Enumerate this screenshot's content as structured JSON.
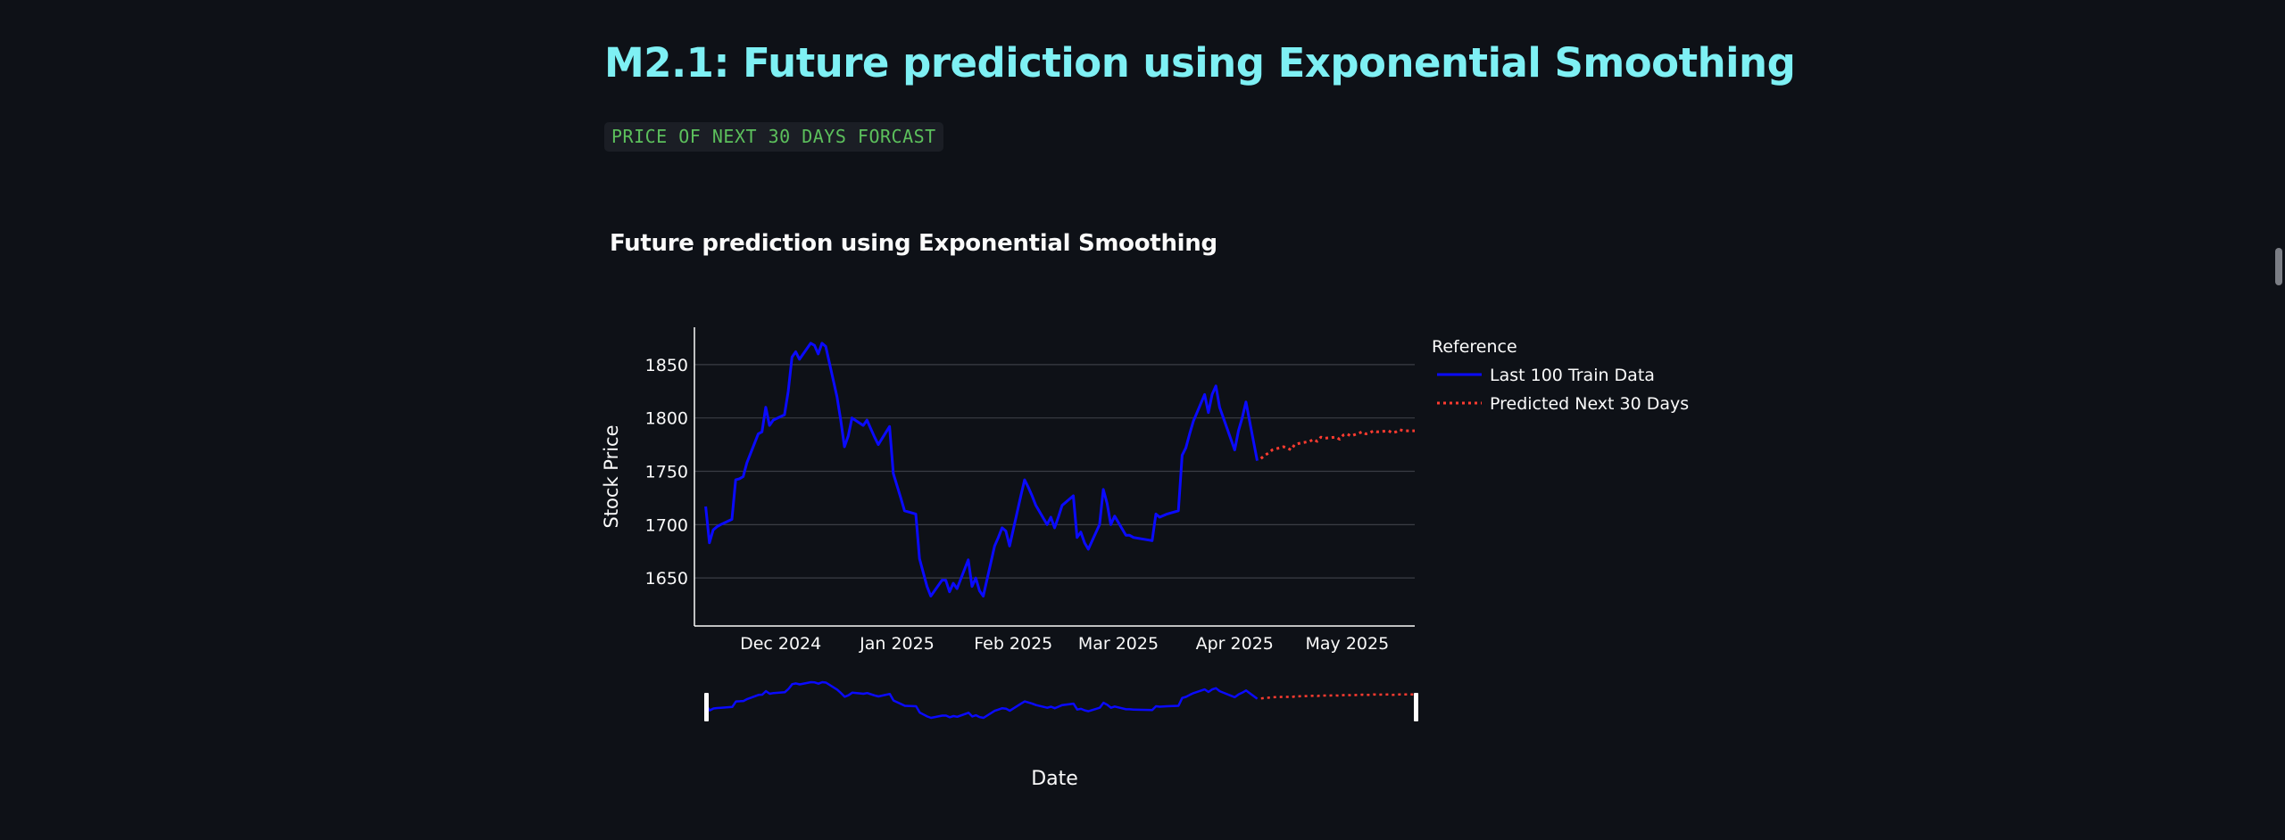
{
  "page": {
    "title": "M2.1: Future prediction using Exponential Smoothing",
    "code_label": "PRICE OF NEXT 30 DAYS FORCAST"
  },
  "colors": {
    "background": "#0e1117",
    "title": "#7ef0f4",
    "code_text": "#5cc05c",
    "code_bg": "#1b1e25",
    "train_line": "#0a0aff",
    "predicted_line": "#ff3b30",
    "axis_text": "#fafafa",
    "grid": "#3a3d45",
    "scrollbar": "#7b7e85"
  },
  "chart_data": {
    "type": "line",
    "title": "Future prediction using Exponential Smoothing",
    "xlabel": "Date",
    "ylabel": "Stock Price",
    "y_ticks": [
      1650,
      1700,
      1750,
      1800,
      1850
    ],
    "ylim": [
      1605,
      1885
    ],
    "x_ticks": [
      {
        "date": "2024-12-01",
        "label": "Dec 2024"
      },
      {
        "date": "2025-01-01",
        "label": "Jan 2025"
      },
      {
        "date": "2025-02-01",
        "label": "Feb 2025"
      },
      {
        "date": "2025-03-01",
        "label": "Mar 2025"
      },
      {
        "date": "2025-04-01",
        "label": "Apr 2025"
      },
      {
        "date": "2025-05-01",
        "label": "May 2025"
      }
    ],
    "xlim": [
      "2024-11-08",
      "2025-05-19"
    ],
    "grid": true,
    "legend": {
      "title": "Reference",
      "position": "right"
    },
    "rangeslider": true,
    "series": [
      {
        "name": "Last 100 Train Data",
        "style": "solid",
        "points": [
          [
            "2024-11-11",
            1717
          ],
          [
            "2024-11-12",
            1683
          ],
          [
            "2024-11-13",
            1695
          ],
          [
            "2024-11-14",
            1698
          ],
          [
            "2024-11-15",
            1700
          ],
          [
            "2024-11-18",
            1705
          ],
          [
            "2024-11-19",
            1742
          ],
          [
            "2024-11-20",
            1743
          ],
          [
            "2024-11-21",
            1745
          ],
          [
            "2024-11-22",
            1758
          ],
          [
            "2024-11-25",
            1785
          ],
          [
            "2024-11-26",
            1787
          ],
          [
            "2024-11-27",
            1810
          ],
          [
            "2024-11-28",
            1793
          ],
          [
            "2024-11-29",
            1798
          ],
          [
            "2024-12-02",
            1803
          ],
          [
            "2024-12-03",
            1825
          ],
          [
            "2024-12-04",
            1857
          ],
          [
            "2024-12-05",
            1862
          ],
          [
            "2024-12-06",
            1855
          ],
          [
            "2024-12-09",
            1870
          ],
          [
            "2024-12-10",
            1868
          ],
          [
            "2024-12-11",
            1860
          ],
          [
            "2024-12-12",
            1870
          ],
          [
            "2024-12-13",
            1867
          ],
          [
            "2024-12-16",
            1820
          ],
          [
            "2024-12-17",
            1798
          ],
          [
            "2024-12-18",
            1773
          ],
          [
            "2024-12-19",
            1783
          ],
          [
            "2024-12-20",
            1800
          ],
          [
            "2024-12-23",
            1793
          ],
          [
            "2024-12-24",
            1798
          ],
          [
            "2024-12-26",
            1782
          ],
          [
            "2024-12-27",
            1775
          ],
          [
            "2024-12-30",
            1792
          ],
          [
            "2024-12-31",
            1748
          ],
          [
            "2025-01-02",
            1725
          ],
          [
            "2025-01-03",
            1713
          ],
          [
            "2025-01-06",
            1710
          ],
          [
            "2025-01-07",
            1668
          ],
          [
            "2025-01-08",
            1655
          ],
          [
            "2025-01-09",
            1642
          ],
          [
            "2025-01-10",
            1633
          ],
          [
            "2025-01-13",
            1648
          ],
          [
            "2025-01-14",
            1648
          ],
          [
            "2025-01-15",
            1637
          ],
          [
            "2025-01-16",
            1645
          ],
          [
            "2025-01-17",
            1640
          ],
          [
            "2025-01-20",
            1667
          ],
          [
            "2025-01-21",
            1642
          ],
          [
            "2025-01-22",
            1650
          ],
          [
            "2025-01-23",
            1638
          ],
          [
            "2025-01-24",
            1633
          ],
          [
            "2025-01-27",
            1680
          ],
          [
            "2025-01-28",
            1688
          ],
          [
            "2025-01-29",
            1697
          ],
          [
            "2025-01-30",
            1694
          ],
          [
            "2025-01-31",
            1680
          ],
          [
            "2025-02-03",
            1727
          ],
          [
            "2025-02-04",
            1742
          ],
          [
            "2025-02-05",
            1735
          ],
          [
            "2025-02-06",
            1727
          ],
          [
            "2025-02-07",
            1718
          ],
          [
            "2025-02-10",
            1700
          ],
          [
            "2025-02-11",
            1707
          ],
          [
            "2025-02-12",
            1697
          ],
          [
            "2025-02-13",
            1707
          ],
          [
            "2025-02-14",
            1718
          ],
          [
            "2025-02-17",
            1727
          ],
          [
            "2025-02-18",
            1688
          ],
          [
            "2025-02-19",
            1693
          ],
          [
            "2025-02-20",
            1683
          ],
          [
            "2025-02-21",
            1677
          ],
          [
            "2025-02-24",
            1700
          ],
          [
            "2025-02-25",
            1733
          ],
          [
            "2025-02-26",
            1720
          ],
          [
            "2025-02-27",
            1700
          ],
          [
            "2025-02-28",
            1708
          ],
          [
            "2025-03-03",
            1690
          ],
          [
            "2025-03-04",
            1690
          ],
          [
            "2025-03-05",
            1688
          ],
          [
            "2025-03-10",
            1685
          ],
          [
            "2025-03-11",
            1710
          ],
          [
            "2025-03-12",
            1707
          ],
          [
            "2025-03-14",
            1710
          ],
          [
            "2025-03-17",
            1713
          ],
          [
            "2025-03-18",
            1765
          ],
          [
            "2025-03-19",
            1772
          ],
          [
            "2025-03-20",
            1785
          ],
          [
            "2025-03-21",
            1797
          ],
          [
            "2025-03-24",
            1822
          ],
          [
            "2025-03-25",
            1805
          ],
          [
            "2025-03-26",
            1822
          ],
          [
            "2025-03-27",
            1830
          ],
          [
            "2025-03-28",
            1810
          ],
          [
            "2025-04-01",
            1770
          ],
          [
            "2025-04-02",
            1788
          ],
          [
            "2025-04-03",
            1800
          ],
          [
            "2025-04-04",
            1815
          ],
          [
            "2025-04-07",
            1760
          ]
        ]
      },
      {
        "name": "Predicted Next 30 Days",
        "style": "dotted",
        "points": [
          [
            "2025-04-08",
            1762
          ],
          [
            "2025-04-09",
            1765
          ],
          [
            "2025-04-10",
            1767
          ],
          [
            "2025-04-11",
            1770
          ],
          [
            "2025-04-14",
            1773
          ],
          [
            "2025-04-15",
            1772
          ],
          [
            "2025-04-16",
            1770
          ],
          [
            "2025-04-17",
            1775
          ],
          [
            "2025-04-18",
            1776
          ],
          [
            "2025-04-21",
            1778
          ],
          [
            "2025-04-22",
            1780
          ],
          [
            "2025-04-23",
            1778
          ],
          [
            "2025-04-24",
            1782
          ],
          [
            "2025-04-25",
            1781
          ],
          [
            "2025-04-28",
            1782
          ],
          [
            "2025-04-29",
            1780
          ],
          [
            "2025-04-30",
            1784
          ],
          [
            "2025-05-01",
            1785
          ],
          [
            "2025-05-02",
            1783
          ],
          [
            "2025-05-05",
            1787
          ],
          [
            "2025-05-06",
            1785
          ],
          [
            "2025-05-07",
            1786
          ],
          [
            "2025-05-08",
            1788
          ],
          [
            "2025-05-09",
            1787
          ],
          [
            "2025-05-12",
            1788
          ],
          [
            "2025-05-13",
            1786
          ],
          [
            "2025-05-14",
            1787
          ],
          [
            "2025-05-15",
            1789
          ],
          [
            "2025-05-16",
            1788
          ],
          [
            "2025-05-19",
            1788
          ]
        ]
      }
    ]
  }
}
